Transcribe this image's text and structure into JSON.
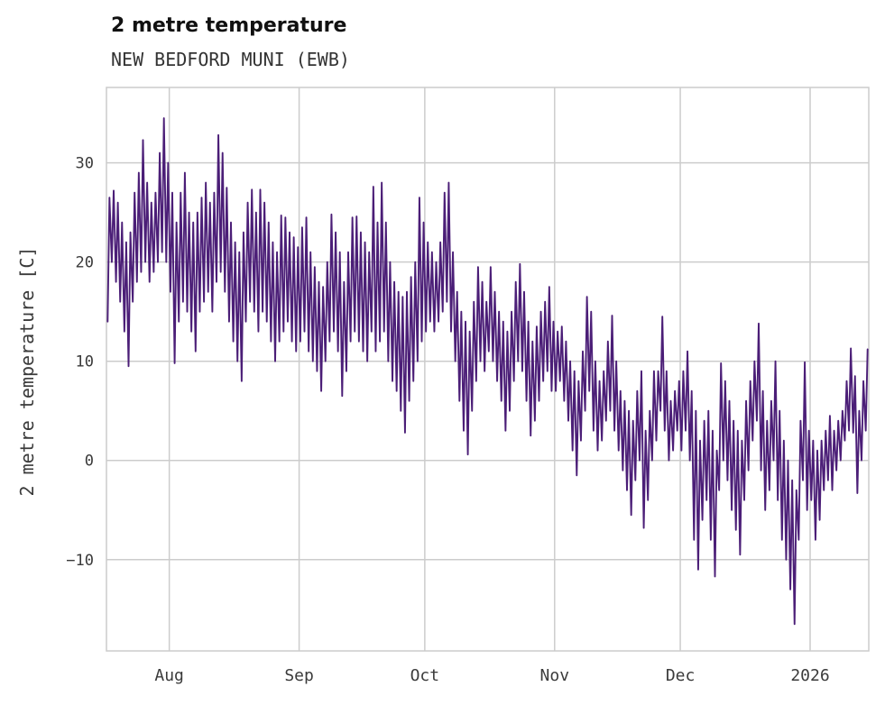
{
  "header": {
    "title": "2 metre temperature",
    "subtitle": "NEW BEDFORD MUNI (EWB)"
  },
  "chart_data": {
    "type": "line",
    "title": "2 metre temperature",
    "subtitle": "NEW BEDFORD MUNI (EWB)",
    "xlabel": "",
    "ylabel": "2 metre temperature [C]",
    "ylim": [
      -19.2,
      37.6
    ],
    "grid": true,
    "legend": false,
    "line_color": "#4b1e77",
    "grid_color": "#cccccc",
    "text_color": "#3a3a3a",
    "title_color": "#111111",
    "yticks": [
      {
        "value": 30,
        "label": "30"
      },
      {
        "value": 20,
        "label": "20"
      },
      {
        "value": 10,
        "label": "10"
      },
      {
        "value": 0,
        "label": "0"
      },
      {
        "value": -10,
        "label": "−10"
      }
    ],
    "xticks": [
      {
        "label": "Aug",
        "day": 15
      },
      {
        "label": "Sep",
        "day": 46
      },
      {
        "label": "Oct",
        "day": 76
      },
      {
        "label": "Nov",
        "day": 107
      },
      {
        "label": "Dec",
        "day": 137
      },
      {
        "label": "2026",
        "day": 168
      }
    ],
    "days_total": 182,
    "x_range_note": "daily values estimated from hourly trace, mid-July 2025 through mid-January 2026",
    "series": [
      {
        "name": "daily_min",
        "values": [
          14,
          20,
          18,
          16,
          13,
          9.5,
          16,
          18,
          19,
          20,
          18,
          19,
          20,
          21,
          20,
          17,
          9.8,
          14,
          16,
          15,
          13,
          11,
          15,
          16,
          17,
          15,
          18,
          19,
          17,
          14,
          12,
          10,
          8,
          14,
          16,
          15,
          13,
          15,
          14,
          12,
          10,
          12,
          13,
          14,
          12,
          11,
          12,
          13,
          11,
          10,
          9,
          7,
          10,
          12,
          13,
          11,
          6.5,
          9,
          12,
          13,
          12,
          11,
          10,
          13,
          11,
          12,
          13,
          10,
          8,
          7,
          5,
          2.8,
          6,
          8,
          10,
          12,
          13,
          14,
          13,
          14,
          15,
          16,
          13,
          10,
          6,
          3,
          0.6,
          5,
          8,
          10,
          9,
          11,
          10,
          8,
          6,
          3,
          5,
          8,
          10,
          9,
          6,
          2.5,
          4,
          6,
          8,
          9,
          7,
          7,
          8,
          6,
          4,
          1,
          -1.5,
          2,
          5,
          7,
          3,
          1,
          2,
          4,
          5,
          3,
          1,
          -1,
          -3,
          -5.5,
          -2,
          0,
          -6.8,
          -4,
          0,
          2,
          5,
          3,
          0,
          1,
          3,
          1,
          3,
          0,
          -8,
          -11,
          -6,
          -4,
          -8,
          -11.7,
          -3,
          0,
          -2,
          -5,
          -7,
          -9.5,
          -4,
          -1,
          2,
          4,
          -1,
          -5,
          -3,
          0,
          -4,
          -8,
          -10,
          -13,
          -16.5,
          -8,
          -2,
          -5,
          -4,
          -8,
          -6,
          -3,
          -2,
          -3,
          -1,
          0,
          2,
          3,
          2.8,
          -3.3,
          0,
          3
        ]
      },
      {
        "name": "daily_max",
        "values": [
          26.5,
          27.2,
          26,
          24,
          22,
          23,
          27,
          29,
          32.3,
          28,
          26,
          27,
          31,
          34.5,
          30,
          27,
          24,
          27,
          29,
          25,
          24,
          25,
          26.5,
          28,
          26,
          27,
          32.8,
          31,
          27.5,
          24,
          22,
          21,
          23,
          26,
          27.3,
          25,
          27.3,
          26,
          24,
          22,
          21,
          24.7,
          24.5,
          23,
          22.5,
          21.5,
          23.5,
          24.5,
          21,
          19.5,
          18,
          17.5,
          20,
          24.8,
          23,
          21,
          18,
          21,
          24.5,
          24.6,
          23,
          22,
          21,
          27.6,
          24,
          28,
          24,
          20,
          18,
          17,
          16.5,
          17,
          18.5,
          20,
          26.5,
          24,
          22,
          21,
          20,
          22,
          27,
          28,
          21,
          17,
          15,
          14,
          13,
          16,
          19.5,
          18,
          16,
          19.5,
          17,
          15,
          14,
          13,
          15,
          18,
          19.8,
          17,
          14,
          12,
          13.5,
          15,
          16,
          17.5,
          14,
          13,
          13.5,
          12,
          10,
          9,
          8,
          11,
          16.5,
          15,
          10,
          8,
          9,
          12,
          14.6,
          10,
          7,
          6,
          5,
          4,
          7,
          9,
          3,
          5,
          9,
          9,
          14.5,
          9,
          6,
          7,
          8,
          9,
          11,
          7,
          5,
          2,
          4,
          5,
          3,
          1,
          9.8,
          8,
          6,
          4,
          3,
          2,
          6,
          8,
          10,
          13.8,
          7,
          4,
          6,
          10,
          5,
          2,
          0,
          -2,
          -3,
          4,
          9.9,
          3,
          2,
          1,
          2,
          3,
          4.5,
          3,
          4,
          5,
          8,
          11.3,
          8.5,
          5,
          8,
          11.2
        ]
      }
    ]
  }
}
